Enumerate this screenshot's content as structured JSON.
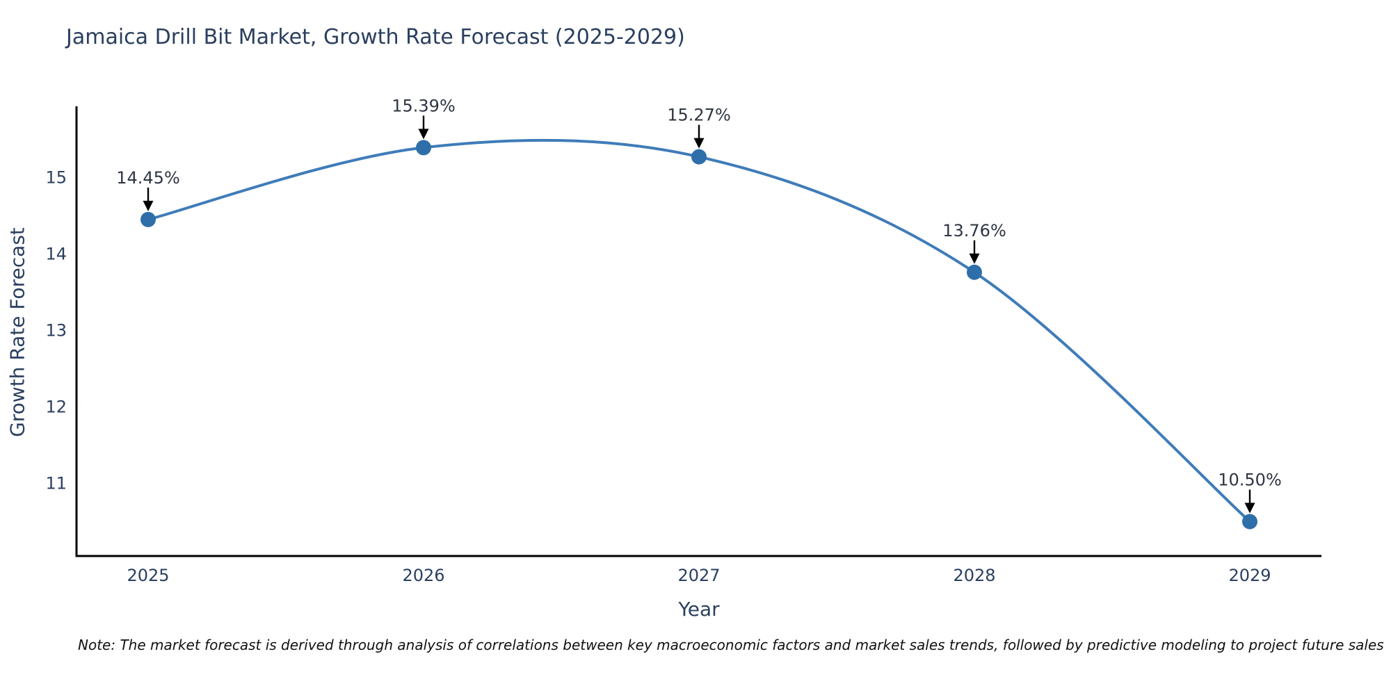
{
  "title": {
    "text": "Jamaica Drill Bit Market, Growth Rate Forecast (2025-2029)",
    "color": "#2a3f5f"
  },
  "chart_data": {
    "type": "line",
    "line_shape": "spline",
    "x": [
      "2025",
      "2026",
      "2027",
      "2028",
      "2029"
    ],
    "series": [
      {
        "name": "Growth Rate Forecast",
        "values": [
          14.45,
          15.39,
          15.27,
          13.76,
          10.5
        ]
      }
    ],
    "point_labels": [
      "14.45%",
      "15.39%",
      "15.27%",
      "13.76%",
      "10.50%"
    ],
    "title": "Jamaica Drill Bit Market, Growth Rate Forecast (2025-2029)",
    "xlabel": "Year",
    "ylabel": "Growth Rate Forecast",
    "ylim": [
      10.05,
      15.93
    ],
    "yticks": [
      11,
      12,
      13,
      14,
      15
    ],
    "grid": false,
    "legend": "none",
    "colors": {
      "line": "#3f7cb9",
      "marker": "#2e6ea9",
      "axis_line": "#000000",
      "tick_text": "#2a3f5f",
      "annotation_text": "#2e3542",
      "annotation_arrow": "#000000",
      "background": "#ffffff"
    }
  },
  "note": {
    "text": "Note: The market forecast is derived through analysis of correlations between key macroeconomic factors and market sales trends, followed by predictive modeling to project future sales"
  }
}
